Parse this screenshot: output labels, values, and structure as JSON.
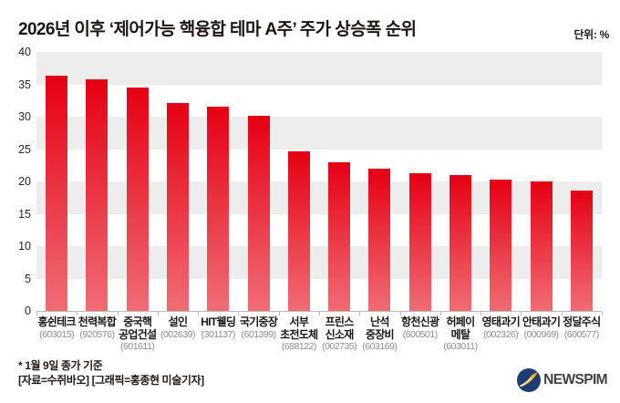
{
  "header": {
    "title": "2026년 이후 ‘제어가능 핵융합 테마 A주’ 주가 상승폭 순위",
    "unit_label": "단위: %"
  },
  "chart_data": {
    "type": "bar",
    "title": "2026년 이후 ‘제어가능 핵융합 테마 A주’ 주가 상승폭 순위",
    "unit": "%",
    "ylim": [
      0,
      40
    ],
    "yticks": [
      40,
      35,
      30,
      25,
      20,
      15,
      10,
      5,
      0
    ],
    "grid": "alternating-bands",
    "band_color": "#ededed",
    "bar_color_top": "#e60013",
    "bar_color_bottom": "#f06c75",
    "categories": [
      {
        "name_lines": [
          "홍쉰테크"
        ],
        "code": "(603015)"
      },
      {
        "name_lines": [
          "천력복합"
        ],
        "code": "(920576)"
      },
      {
        "name_lines": [
          "중국핵",
          "공업건설"
        ],
        "code": "(601611)"
      },
      {
        "name_lines": [
          "설인"
        ],
        "code": "(002639)"
      },
      {
        "name_lines": [
          "HIT웰딩"
        ],
        "code": "(301137)"
      },
      {
        "name_lines": [
          "국기중장"
        ],
        "code": "(601399)"
      },
      {
        "name_lines": [
          "서부",
          "초전도체"
        ],
        "code": "(688122)"
      },
      {
        "name_lines": [
          "프린스",
          "신소재"
        ],
        "code": "(002735)"
      },
      {
        "name_lines": [
          "난석",
          "중장비"
        ],
        "code": "(603169)"
      },
      {
        "name_lines": [
          "항천신광"
        ],
        "code": "(600501)"
      },
      {
        "name_lines": [
          "허페이",
          "메탈"
        ],
        "code": "(603011)"
      },
      {
        "name_lines": [
          "영태과기"
        ],
        "code": "(002326)"
      },
      {
        "name_lines": [
          "안태과기"
        ],
        "code": "(000969)"
      },
      {
        "name_lines": [
          "정달주식"
        ],
        "code": "(600577)"
      }
    ],
    "values": [
      36.3,
      35.8,
      34.5,
      32.1,
      31.6,
      30.1,
      24.6,
      23.0,
      22.0,
      21.3,
      21.0,
      20.3,
      20.0,
      18.6
    ]
  },
  "footnotes": {
    "basis": "* 1월 9일 종가 기준",
    "source": "[자료=수쥐바오] [그래픽=홍종현 미술기자]"
  },
  "logo": {
    "text": "NEWSPIM",
    "circle_color": "#1f3b73",
    "swoosh_color": "#f2ae17"
  }
}
